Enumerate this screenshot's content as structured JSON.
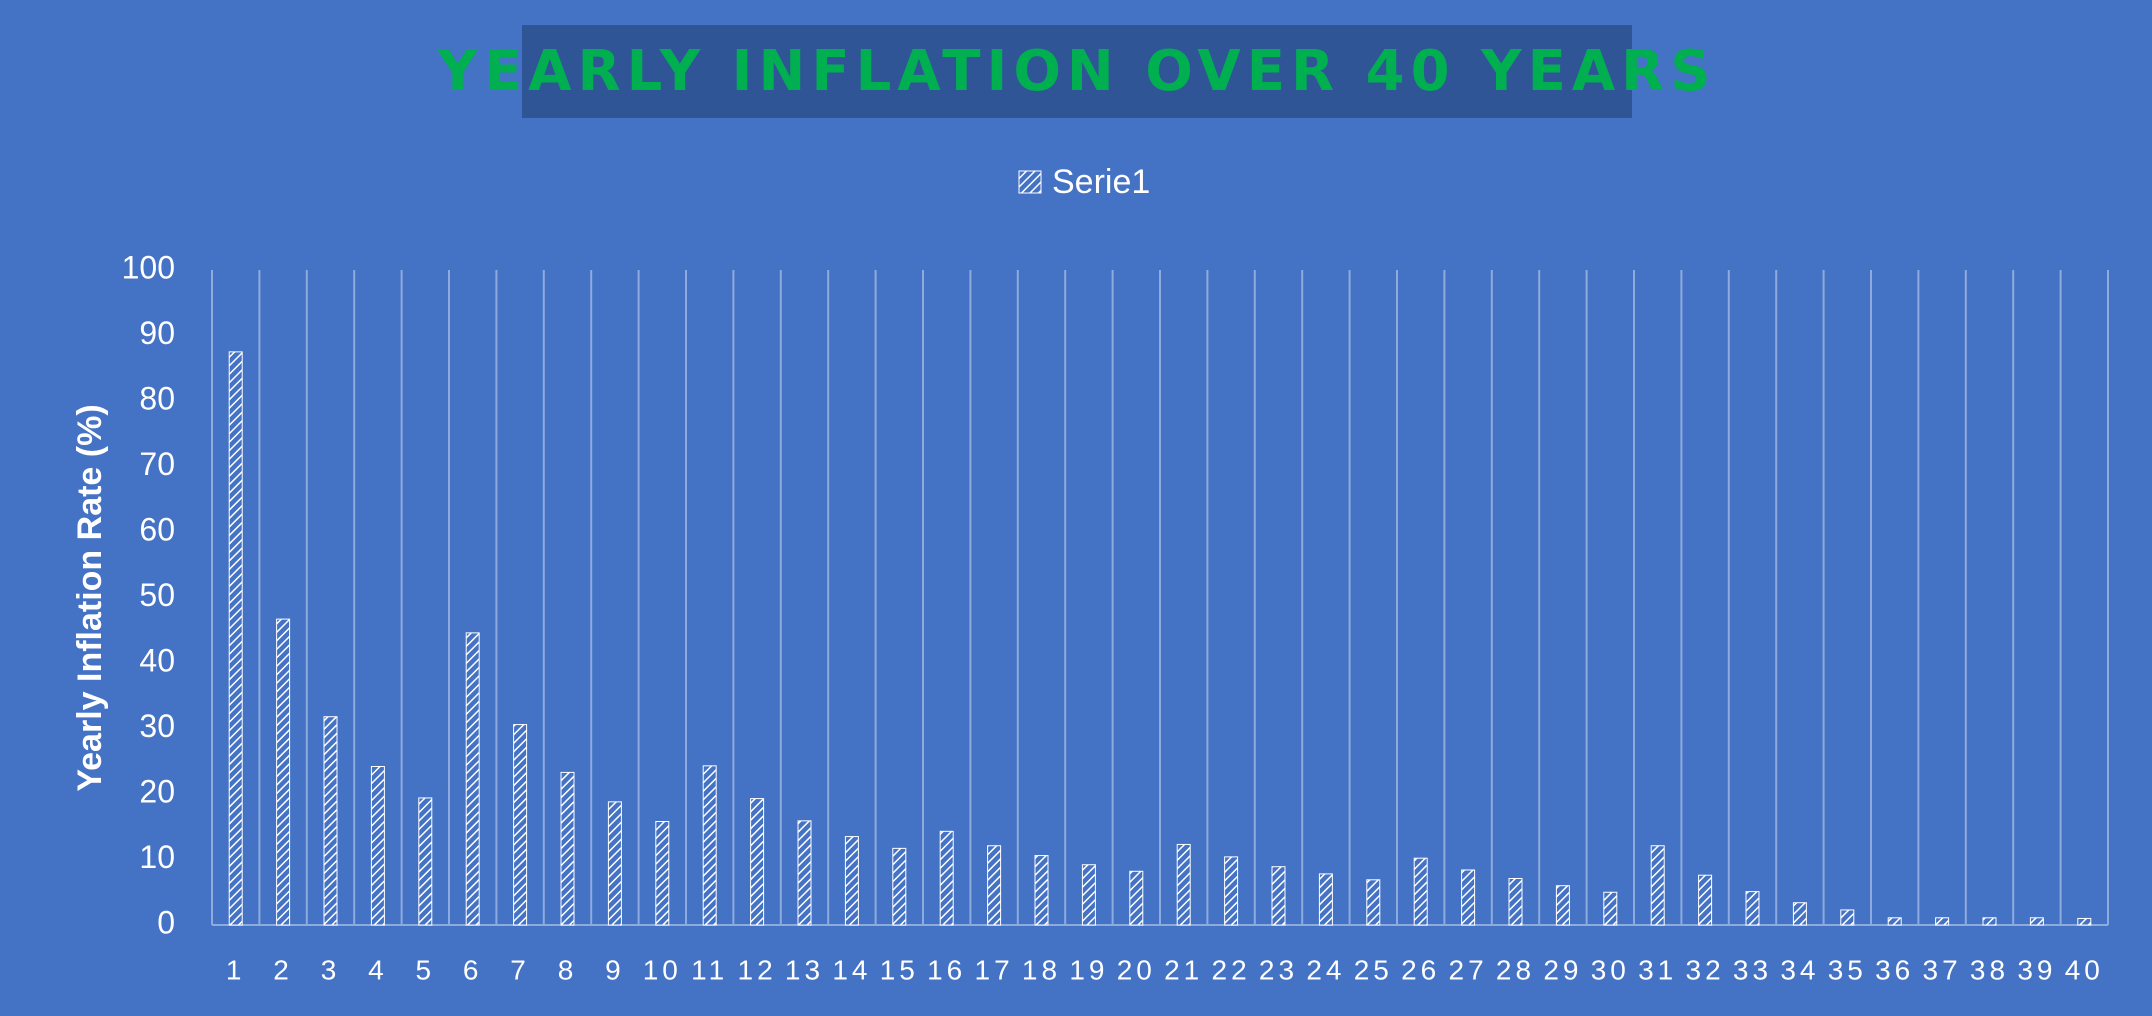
{
  "chart_data": {
    "type": "bar",
    "title": "YEARLY INFLATION OVER 40 YEARS",
    "ylabel": "Yearly Inflation Rate (%)",
    "xlabel": "",
    "ylim": [
      0,
      100
    ],
    "yticks": [
      0,
      10,
      20,
      30,
      40,
      50,
      60,
      70,
      80,
      90,
      100
    ],
    "grid": "vertical",
    "legend_position": "top-center",
    "categories": [
      "1",
      "2",
      "3",
      "4",
      "5",
      "6",
      "7",
      "8",
      "9",
      "10",
      "11",
      "12",
      "13",
      "14",
      "15",
      "16",
      "17",
      "18",
      "19",
      "20",
      "21",
      "22",
      "23",
      "24",
      "25",
      "26",
      "27",
      "28",
      "29",
      "30",
      "31",
      "32",
      "33",
      "34",
      "35",
      "36",
      "37",
      "38",
      "39",
      "40"
    ],
    "series": [
      {
        "name": "Serie1",
        "values": [
          87.5,
          46.7,
          31.8,
          24.2,
          19.4,
          44.6,
          30.6,
          23.3,
          18.8,
          15.8,
          24.3,
          19.3,
          15.9,
          13.5,
          11.7,
          14.3,
          12.1,
          10.6,
          9.2,
          8.2,
          12.3,
          10.4,
          8.9,
          7.8,
          6.9,
          10.2,
          8.4,
          7.1,
          6.0,
          5.0,
          12.1,
          7.6,
          5.1,
          3.4,
          2.3,
          1.1,
          1.1,
          1.1,
          1.1,
          1.0
        ]
      }
    ],
    "colors": {
      "background": "#4472C4",
      "title_box": "#2F5597",
      "title_text": "#00B050",
      "bar_fill": "#FFFFFF",
      "gridline": "#8FAADC"
    }
  }
}
